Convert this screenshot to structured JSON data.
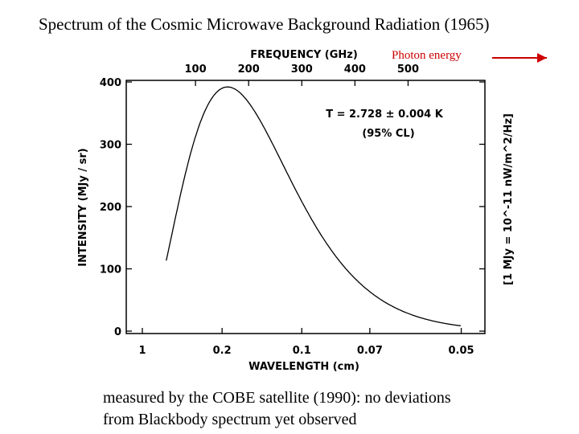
{
  "page": {
    "title": "Spectrum of the Cosmic Microwave Background Radiation (1965)",
    "caption_line1": "measured by the COBE satellite (1990): no deviations",
    "caption_line2": "from Blackbody spectrum yet observed",
    "photon_label": "Photon energy"
  },
  "colors": {
    "arrow": "#cc0000",
    "ink": "#000000"
  },
  "chart_data": {
    "type": "line",
    "title": "Spectrum of the Cosmic Microwave Background Radiation (1965)",
    "xlabel": "WAVELENGTH (cm)",
    "x2label": "FREQUENCY (GHz)",
    "ylabel": "INTENSITY (MJy / sr)",
    "y2label": "[1 MJy = 10^-11 nW/m^2/Hz]",
    "annotation_line1": "T = 2.728 ± 0.004 K",
    "annotation_line2": "(95% CL)",
    "xlim_GHz": [
      0,
      640
    ],
    "ylim": [
      0,
      400
    ],
    "ytick_labels": [
      "0",
      "100",
      "200",
      "300",
      "400"
    ],
    "ytick_values": [
      0,
      100,
      200,
      300,
      400
    ],
    "top_ticks": [
      {
        "label": "100",
        "ghz": 100
      },
      {
        "label": "200",
        "ghz": 200
      },
      {
        "label": "300",
        "ghz": 300
      },
      {
        "label": "400",
        "ghz": 400
      },
      {
        "label": "500",
        "ghz": 500
      }
    ],
    "bottom_ticks": [
      {
        "label": "1",
        "ghz": 0
      },
      {
        "label": "0.2",
        "ghz": 150
      },
      {
        "label": "0.1",
        "ghz": 300
      },
      {
        "label": "0.07",
        "ghz": 428
      },
      {
        "label": "0.05",
        "ghz": 600
      }
    ],
    "temperature_K": 2.728,
    "curve_range_GHz": [
      45,
      600
    ],
    "series": [
      {
        "name": "COBE FIRAS blackbody fit",
        "x_GHz": [
          45,
          60,
          80,
          100,
          120,
          140,
          160,
          180,
          200,
          220,
          240,
          260,
          280,
          300,
          320,
          340,
          360,
          380,
          400,
          420,
          440,
          460,
          480,
          500,
          520,
          540,
          560,
          580,
          600
        ],
        "y_MJy_sr": [
          200,
          270,
          330,
          370,
          388,
          392,
          380,
          357,
          327,
          293,
          257,
          222,
          189,
          158,
          130,
          106,
          86,
          68,
          54,
          42,
          33,
          25,
          19,
          14,
          11,
          8,
          6,
          4,
          3
        ]
      }
    ]
  }
}
